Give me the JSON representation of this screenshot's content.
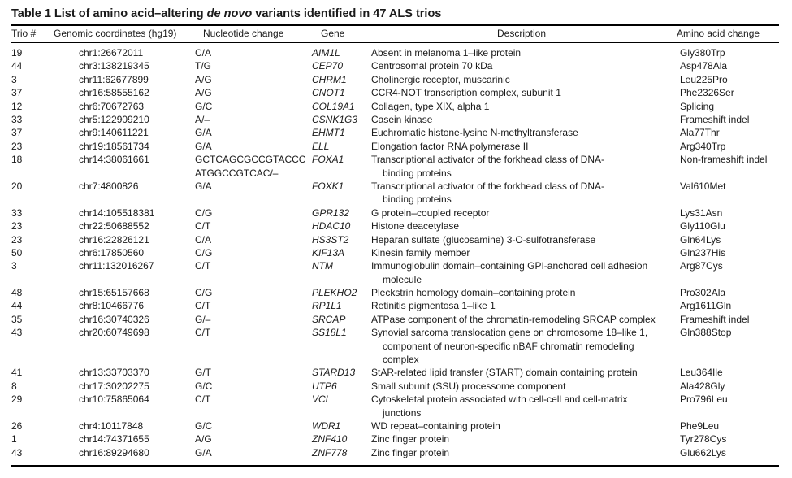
{
  "title": {
    "prefix": "Table 1  List of amino acid–altering ",
    "italic": "de novo",
    "suffix": " variants identified in 47 ALS trios"
  },
  "headers": {
    "trio": "Trio #",
    "coord": "Genomic coordinates (hg19)",
    "nuc": "Nucleotide change",
    "gene": "Gene",
    "desc": "Description",
    "aa": "Amino acid change"
  },
  "rows": [
    {
      "trio": "19",
      "coord": "chr1:26672011",
      "nuc": [
        "C/A"
      ],
      "gene": "AIM1L",
      "desc": [
        "Absent in melanoma 1–like protein"
      ],
      "aa": "Gly380Trp"
    },
    {
      "trio": "44",
      "coord": "chr3:138219345",
      "nuc": [
        "T/G"
      ],
      "gene": "CEP70",
      "desc": [
        "Centrosomal protein 70 kDa"
      ],
      "aa": "Asp478Ala"
    },
    {
      "trio": "3",
      "coord": "chr11:62677899",
      "nuc": [
        "A/G"
      ],
      "gene": "CHRM1",
      "desc": [
        "Cholinergic receptor, muscarinic"
      ],
      "aa": "Leu225Pro"
    },
    {
      "trio": "37",
      "coord": "chr16:58555162",
      "nuc": [
        "A/G"
      ],
      "gene": "CNOT1",
      "desc": [
        "CCR4-NOT transcription complex, subunit 1"
      ],
      "aa": "Phe2326Ser"
    },
    {
      "trio": "12",
      "coord": "chr6:70672763",
      "nuc": [
        "G/C"
      ],
      "gene": "COL19A1",
      "desc": [
        "Collagen, type XIX, alpha 1"
      ],
      "aa": "Splicing"
    },
    {
      "trio": "33",
      "coord": "chr5:122909210",
      "nuc": [
        "A/–"
      ],
      "gene": "CSNK1G3",
      "desc": [
        "Casein kinase"
      ],
      "aa": "Frameshift indel"
    },
    {
      "trio": "37",
      "coord": "chr9:140611221",
      "nuc": [
        "G/A"
      ],
      "gene": "EHMT1",
      "desc": [
        "Euchromatic histone-lysine N-methyltransferase"
      ],
      "aa": "Ala77Thr"
    },
    {
      "trio": "23",
      "coord": "chr19:18561734",
      "nuc": [
        "G/A"
      ],
      "gene": "ELL",
      "desc": [
        "Elongation factor RNA polymerase II"
      ],
      "aa": "Arg340Trp"
    },
    {
      "trio": "18",
      "coord": "chr14:38061661",
      "nuc": [
        "GCTCAGCGCCGTACCC",
        "ATGGCCGTCAC/–"
      ],
      "gene": "FOXA1",
      "desc": [
        "Transcriptional activator of the forkhead class of DNA-",
        "binding proteins"
      ],
      "aa": "Non-frameshift indel"
    },
    {
      "trio": "20",
      "coord": "chr7:4800826",
      "nuc": [
        "G/A"
      ],
      "gene": "FOXK1",
      "desc": [
        "Transcriptional activator of the forkhead class of DNA-",
        "binding proteins"
      ],
      "aa": "Val610Met"
    },
    {
      "trio": "33",
      "coord": "chr14:105518381",
      "nuc": [
        "C/G"
      ],
      "gene": "GPR132",
      "desc": [
        "G protein–coupled receptor"
      ],
      "aa": "Lys31Asn"
    },
    {
      "trio": "23",
      "coord": "chr22:50688552",
      "nuc": [
        "C/T"
      ],
      "gene": "HDAC10",
      "desc": [
        "Histone deacetylase"
      ],
      "aa": "Gly110Glu"
    },
    {
      "trio": "23",
      "coord": "chr16:22826121",
      "nuc": [
        "C/A"
      ],
      "gene": "HS3ST2",
      "desc": [
        "Heparan sulfate (glucosamine) 3-O-sulfotransferase"
      ],
      "aa": "Gln64Lys"
    },
    {
      "trio": "50",
      "coord": "chr6:17850560",
      "nuc": [
        "C/G"
      ],
      "gene": "KIF13A",
      "desc": [
        "Kinesin family member"
      ],
      "aa": "Gln237His"
    },
    {
      "trio": "3",
      "coord": "chr11:132016267",
      "nuc": [
        "C/T"
      ],
      "gene": "NTM",
      "desc": [
        "Immunoglobulin domain–containing GPI-anchored cell adhesion",
        "molecule"
      ],
      "aa": "Arg87Cys"
    },
    {
      "trio": "48",
      "coord": "chr15:65157668",
      "nuc": [
        "C/G"
      ],
      "gene": "PLEKHO2",
      "desc": [
        "Pleckstrin homology domain–containing protein"
      ],
      "aa": "Pro302Ala"
    },
    {
      "trio": "44",
      "coord": "chr8:10466776",
      "nuc": [
        "C/T"
      ],
      "gene": "RP1L1",
      "desc": [
        "Retinitis pigmentosa 1–like 1"
      ],
      "aa": "Arg1611Gln"
    },
    {
      "trio": "35",
      "coord": "chr16:30740326",
      "nuc": [
        "G/–"
      ],
      "gene": "SRCAP",
      "desc": [
        "ATPase component of the chromatin-remodeling SRCAP complex"
      ],
      "aa": "Frameshift indel"
    },
    {
      "trio": "43",
      "coord": "chr20:60749698",
      "nuc": [
        "C/T"
      ],
      "gene": "SS18L1",
      "desc": [
        "Synovial sarcoma translocation gene on chromosome 18–like 1,",
        "component of neuron-specific nBAF chromatin remodeling",
        "complex"
      ],
      "aa": "Gln388Stop"
    },
    {
      "trio": "41",
      "coord": "chr13:33703370",
      "nuc": [
        "G/T"
      ],
      "gene": "STARD13",
      "desc": [
        "StAR-related lipid transfer (START) domain containing protein"
      ],
      "aa": "Leu364Ile"
    },
    {
      "trio": "8",
      "coord": "chr17:30202275",
      "nuc": [
        "G/C"
      ],
      "gene": "UTP6",
      "desc": [
        "Small subunit (SSU) processome component"
      ],
      "aa": "Ala428Gly"
    },
    {
      "trio": "29",
      "coord": "chr10:75865064",
      "nuc": [
        "C/T"
      ],
      "gene": "VCL",
      "desc": [
        "Cytoskeletal protein associated with cell-cell and cell-matrix",
        "junctions"
      ],
      "aa": "Pro796Leu"
    },
    {
      "trio": "26",
      "coord": "chr4:10117848",
      "nuc": [
        "G/C"
      ],
      "gene": "WDR1",
      "desc": [
        "WD repeat–containing protein"
      ],
      "aa": "Phe9Leu"
    },
    {
      "trio": "1",
      "coord": "chr14:74371655",
      "nuc": [
        "A/G"
      ],
      "gene": "ZNF410",
      "desc": [
        "Zinc finger protein"
      ],
      "aa": "Tyr278Cys"
    },
    {
      "trio": "43",
      "coord": "chr16:89294680",
      "nuc": [
        "G/A"
      ],
      "gene": "ZNF778",
      "desc": [
        "Zinc finger protein"
      ],
      "aa": "Glu662Lys"
    }
  ]
}
